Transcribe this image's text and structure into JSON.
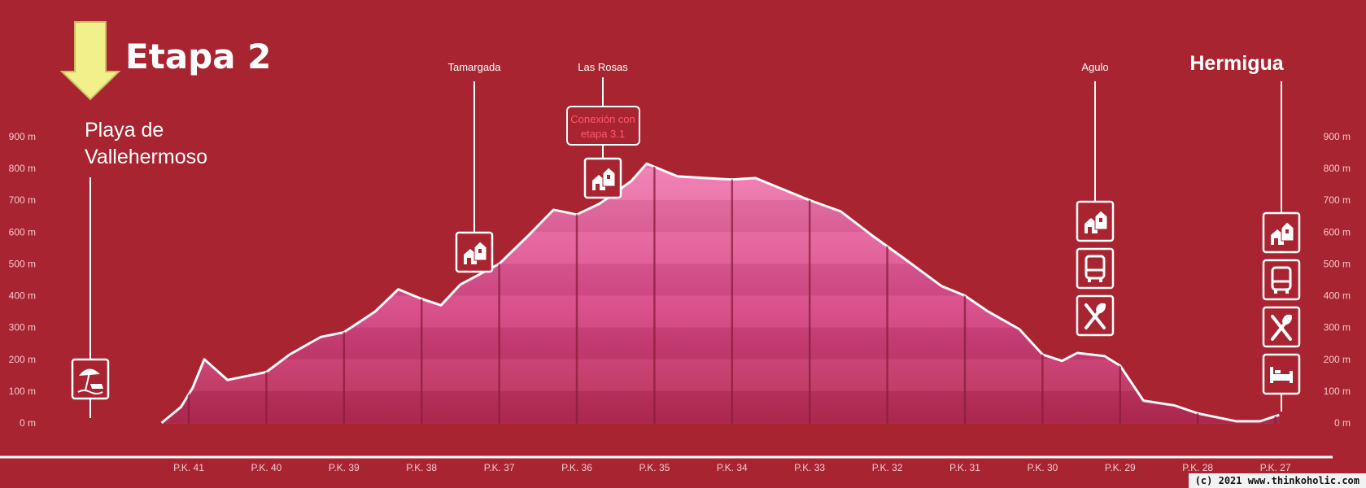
{
  "title": "Etapa 2",
  "start": {
    "line1": "Playa de",
    "line2": "Vallehermoso"
  },
  "end": {
    "name": "Hermigua"
  },
  "places": [
    {
      "name": "Tamargada",
      "icons": [
        "houses-icon"
      ]
    },
    {
      "name": "Las Rosas",
      "icons": [
        "houses-icon"
      ],
      "callout": [
        "Conexión con",
        "etapa 3.1"
      ]
    },
    {
      "name": "Agulo",
      "icons": [
        "houses-icon",
        "bus-icon",
        "restaurant-icon"
      ]
    }
  ],
  "start_icons": [
    "beach-icon"
  ],
  "end_icons": [
    "houses-icon",
    "bus-icon",
    "restaurant-icon",
    "bed-icon"
  ],
  "credit": "(c) 2021 www.thinkoholic.com",
  "colors": {
    "background": "#a82430",
    "fill": "#e9508e",
    "line": "#ffffff",
    "arrow": "#f2f08a",
    "callout": "#ff5a6e"
  },
  "chart_data": {
    "type": "area",
    "title": "Etapa 2",
    "xlabel": "",
    "ylabel": "",
    "ylim": [
      0,
      900
    ],
    "xlim": [
      41.4,
      26.6
    ],
    "y_ticks": [
      "0 m",
      "100 m",
      "200 m",
      "300 m",
      "400 m",
      "500 m",
      "600 m",
      "700 m",
      "800 m",
      "900 m"
    ],
    "x_ticks": [
      "P.K. 41",
      "P.K. 40",
      "P.K. 39",
      "P.K. 38",
      "P.K. 37",
      "P.K. 36",
      "P.K. 35",
      "P.K. 34",
      "P.K. 33",
      "P.K. 32",
      "P.K. 31",
      "P.K. 30",
      "P.K. 29",
      "P.K. 28",
      "P.K. 27"
    ],
    "series": [
      {
        "x": [
          41.35,
          41.1,
          40.95,
          40.8,
          40.5,
          40.0,
          39.7,
          39.3,
          39.0,
          38.6,
          38.3,
          38.0,
          37.75,
          37.5,
          37.0,
          36.6,
          36.3,
          36.0,
          35.7,
          35.3,
          35.1,
          34.7,
          34.0,
          33.7,
          33.0,
          32.6,
          32.2,
          31.8,
          31.3,
          31.0,
          30.7,
          30.3,
          30.0,
          29.75,
          29.55,
          29.2,
          29.0,
          28.7,
          28.3,
          28.0,
          27.5,
          27.2,
          26.95
        ],
        "y": [
          0,
          50,
          110,
          200,
          135,
          160,
          215,
          270,
          285,
          350,
          420,
          390,
          370,
          435,
          500,
          595,
          670,
          655,
          690,
          760,
          815,
          775,
          765,
          770,
          700,
          665,
          590,
          520,
          430,
          400,
          350,
          295,
          215,
          195,
          220,
          210,
          180,
          70,
          55,
          30,
          5,
          5,
          25
        ]
      }
    ],
    "grid": false,
    "legend": "none"
  }
}
